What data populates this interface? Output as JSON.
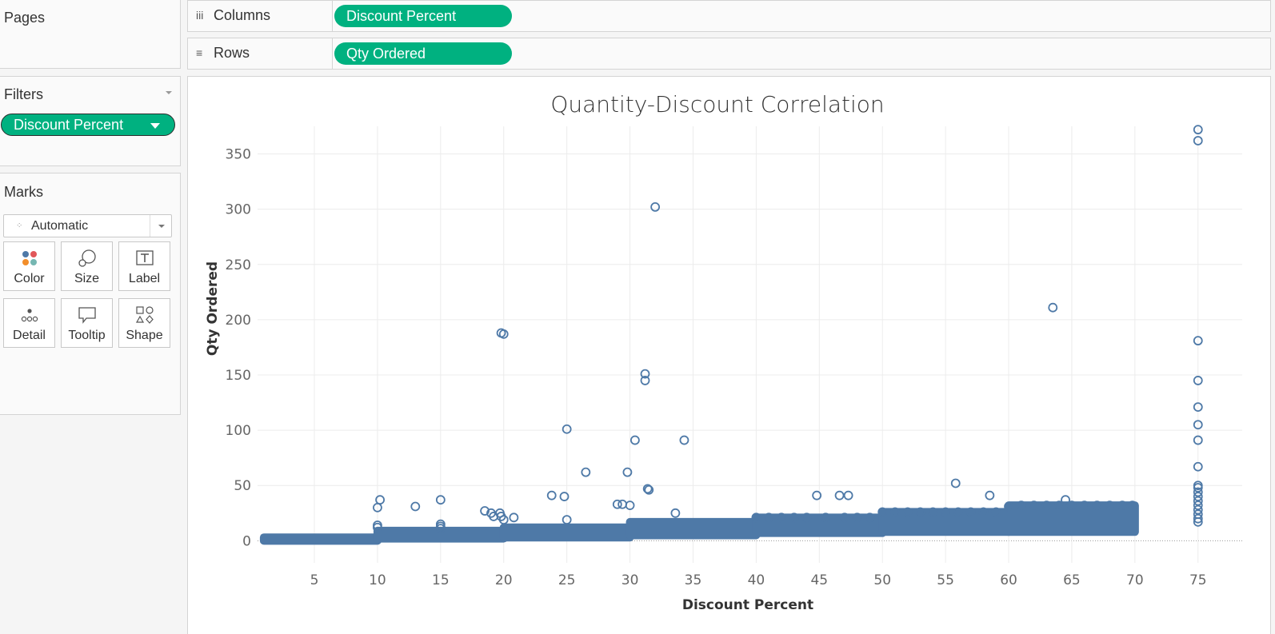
{
  "pages": {
    "title": "Pages"
  },
  "filters": {
    "title": "Filters",
    "pill": "Discount Percent"
  },
  "marks": {
    "title": "Marks",
    "type": "Automatic",
    "buttons": [
      "Color",
      "Size",
      "Label",
      "Detail",
      "Tooltip",
      "Shape"
    ],
    "icons": [
      "color-icon",
      "size-icon",
      "label-icon",
      "detail-icon",
      "tooltip-icon",
      "shape-icon"
    ]
  },
  "shelves": {
    "columns": {
      "label": "Columns",
      "icon": "iii",
      "pill": "Discount Percent"
    },
    "rows": {
      "label": "Rows",
      "icon": "≡",
      "pill": "Qty Ordered"
    }
  },
  "colors": {
    "pill": "#00b180",
    "mark": "#4e79a7"
  },
  "chart_data": {
    "type": "scatter",
    "title": "Quantity-Discount Correlation",
    "xlabel": "Discount Percent",
    "ylabel": "Qty Ordered",
    "xlim": [
      0.5,
      78.5
    ],
    "ylim": [
      -20,
      375
    ],
    "xticks": [
      5,
      10,
      15,
      20,
      25,
      30,
      35,
      40,
      45,
      50,
      55,
      60,
      65,
      70,
      75
    ],
    "yticks": [
      0,
      50,
      100,
      150,
      200,
      250,
      300,
      350
    ],
    "grid": true,
    "dense_bands": [
      {
        "x": [
          1,
          10
        ],
        "y": [
          0,
          3
        ]
      },
      {
        "x": [
          10,
          20
        ],
        "y": [
          2,
          9
        ]
      },
      {
        "x": [
          20,
          30
        ],
        "y": [
          3,
          12
        ]
      },
      {
        "x": [
          30,
          40
        ],
        "y": [
          5,
          17
        ]
      },
      {
        "x": [
          40,
          50
        ],
        "y": [
          7,
          21
        ]
      },
      {
        "x": [
          50,
          60
        ],
        "y": [
          8,
          26
        ]
      },
      {
        "x": [
          60,
          70
        ],
        "y": [
          8,
          32
        ]
      }
    ],
    "points": [
      [
        10,
        30
      ],
      [
        10.2,
        37
      ],
      [
        10,
        14
      ],
      [
        10,
        12
      ],
      [
        13,
        31
      ],
      [
        15,
        37
      ],
      [
        15,
        15
      ],
      [
        15,
        13
      ],
      [
        15,
        11
      ],
      [
        18.5,
        27
      ],
      [
        19,
        25
      ],
      [
        19.2,
        22
      ],
      [
        19.8,
        188
      ],
      [
        20,
        187
      ],
      [
        19.7,
        25
      ],
      [
        19.8,
        22
      ],
      [
        20,
        19
      ],
      [
        20.8,
        21
      ],
      [
        23.8,
        41
      ],
      [
        24.8,
        40
      ],
      [
        25,
        101
      ],
      [
        25,
        19
      ],
      [
        26.5,
        62
      ],
      [
        29,
        33
      ],
      [
        29.4,
        33
      ],
      [
        29.8,
        62
      ],
      [
        30,
        32
      ],
      [
        30.4,
        91
      ],
      [
        31.2,
        151
      ],
      [
        31.2,
        145
      ],
      [
        31.4,
        47
      ],
      [
        31.5,
        46
      ],
      [
        32,
        302
      ],
      [
        33.6,
        25
      ],
      [
        34.3,
        91
      ],
      [
        44.8,
        41
      ],
      [
        46.6,
        41
      ],
      [
        47.3,
        41
      ],
      [
        55.8,
        52
      ],
      [
        58.5,
        41
      ],
      [
        63.5,
        211
      ],
      [
        64.5,
        37
      ],
      [
        75,
        372
      ],
      [
        75,
        362
      ],
      [
        75,
        181
      ],
      [
        75,
        145
      ],
      [
        75,
        121
      ],
      [
        75,
        105
      ],
      [
        75,
        91
      ],
      [
        75,
        67
      ],
      [
        75,
        50
      ],
      [
        75,
        48
      ],
      [
        75,
        44
      ],
      [
        75,
        40
      ],
      [
        75,
        36
      ],
      [
        75,
        32
      ],
      [
        75,
        28
      ],
      [
        75,
        24
      ],
      [
        75,
        20
      ],
      [
        75,
        17
      ],
      [
        40,
        21
      ],
      [
        41,
        21
      ],
      [
        42,
        21
      ],
      [
        43,
        21
      ],
      [
        44,
        21
      ],
      [
        45.5,
        21
      ],
      [
        47,
        21
      ],
      [
        48,
        21
      ],
      [
        49,
        21
      ],
      [
        50,
        26
      ],
      [
        51,
        26
      ],
      [
        52,
        26
      ],
      [
        53,
        26
      ],
      [
        54,
        26
      ],
      [
        55,
        26
      ],
      [
        56,
        26
      ],
      [
        57,
        26
      ],
      [
        58,
        26
      ],
      [
        59,
        26
      ],
      [
        60,
        31
      ],
      [
        61,
        32
      ],
      [
        62,
        32
      ],
      [
        63,
        32
      ],
      [
        64,
        32
      ],
      [
        65,
        32
      ],
      [
        66,
        32
      ],
      [
        67,
        32
      ],
      [
        68,
        32
      ],
      [
        69,
        32
      ],
      [
        69.8,
        32
      ]
    ]
  }
}
